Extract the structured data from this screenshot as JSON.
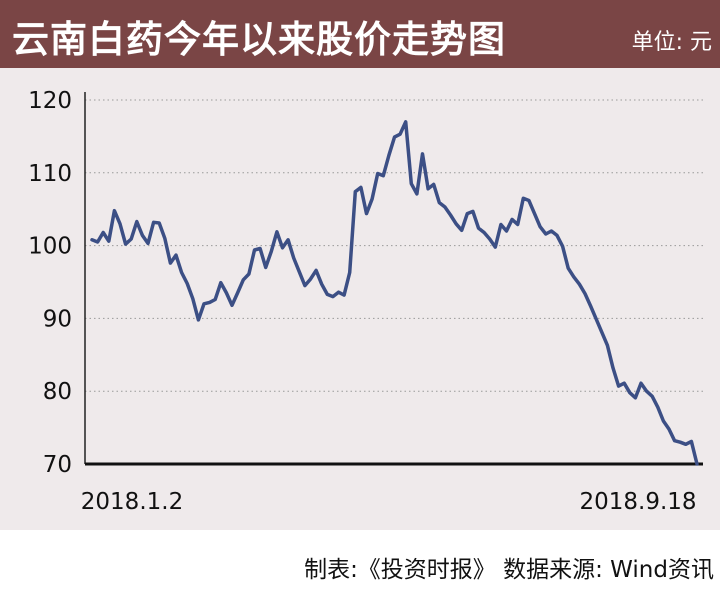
{
  "header": {
    "title": "云南白药今年以来股价走势图",
    "unit": "单位: 元"
  },
  "footer": {
    "credit": "制表:《投资时报》 数据来源: Wind资讯"
  },
  "colors": {
    "header_bg": "#7a4545",
    "plot_bg": "#efeaeb",
    "line": "#3c4f85",
    "grid": "#999999"
  },
  "chart_data": {
    "type": "line",
    "title": "云南白药今年以来股价走势图",
    "unit": "单位: 元",
    "ylim": [
      70,
      120
    ],
    "yticks": [
      70,
      80,
      90,
      100,
      110,
      120
    ],
    "x_start_label": "2018.1.2",
    "x_end_label": "2018.9.18",
    "grid": "horizontal dotted",
    "series": [
      {
        "values": [
          100.8,
          100.5,
          101.8,
          100.6,
          104.8,
          103.0,
          100.2,
          100.9,
          103.3,
          101.4,
          100.3,
          103.2,
          103.1,
          101.0,
          97.6,
          98.7,
          96.3,
          94.8,
          92.7,
          89.8,
          92.0,
          92.2,
          92.6,
          94.9,
          93.5,
          91.8,
          93.5,
          95.3,
          96.1,
          99.4,
          99.6,
          97.0,
          99.2,
          101.9,
          99.7,
          100.8,
          98.3,
          96.4,
          94.5,
          95.4,
          96.6,
          94.7,
          93.3,
          93.0,
          93.6,
          93.2,
          96.3,
          107.4,
          108.0,
          104.4,
          106.4,
          109.9,
          109.6,
          112.4,
          114.9,
          115.3,
          117.0,
          108.5,
          107.1,
          112.6,
          107.8,
          108.4,
          105.9,
          105.3,
          104.2,
          103.0,
          102.1,
          104.4,
          104.7,
          102.4,
          101.8,
          100.9,
          99.8,
          102.9,
          102.0,
          103.6,
          102.9,
          106.5,
          106.2,
          104.4,
          102.6,
          101.6,
          102.0,
          101.4,
          99.9,
          96.9,
          95.7,
          94.7,
          93.4,
          91.7,
          89.9,
          88.1,
          86.3,
          83.2,
          80.7,
          81.1,
          79.8,
          79.1,
          81.1,
          80.0,
          79.3,
          77.8,
          75.9,
          74.8,
          73.2,
          73.0,
          72.7,
          73.1,
          70.0
        ]
      }
    ]
  }
}
